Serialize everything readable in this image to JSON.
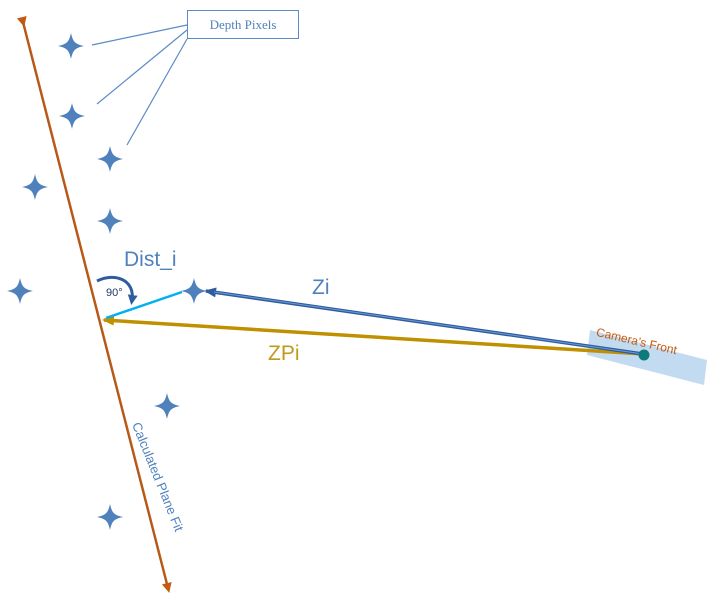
{
  "labels": {
    "depth_pixels": "Depth Pixels",
    "dist_i": "Dist_i",
    "zi": "Zi",
    "zpi": "ZPi",
    "right_angle": "90°",
    "camera_front": "Camera’s Front",
    "plane_fit": "Calculated Plane Fit"
  },
  "colors": {
    "plane_line": "#c55a11",
    "pixel_star": "#4f81bd",
    "zi_arrow": "#4f81bd",
    "zpi_arrow": "#bf9000",
    "dist_line": "#00b0f0",
    "camera_band": "#bdd7ee",
    "camera_dot": "#0f7a7a"
  },
  "icons": [
    "star-icon",
    "arrowhead-icon"
  ]
}
